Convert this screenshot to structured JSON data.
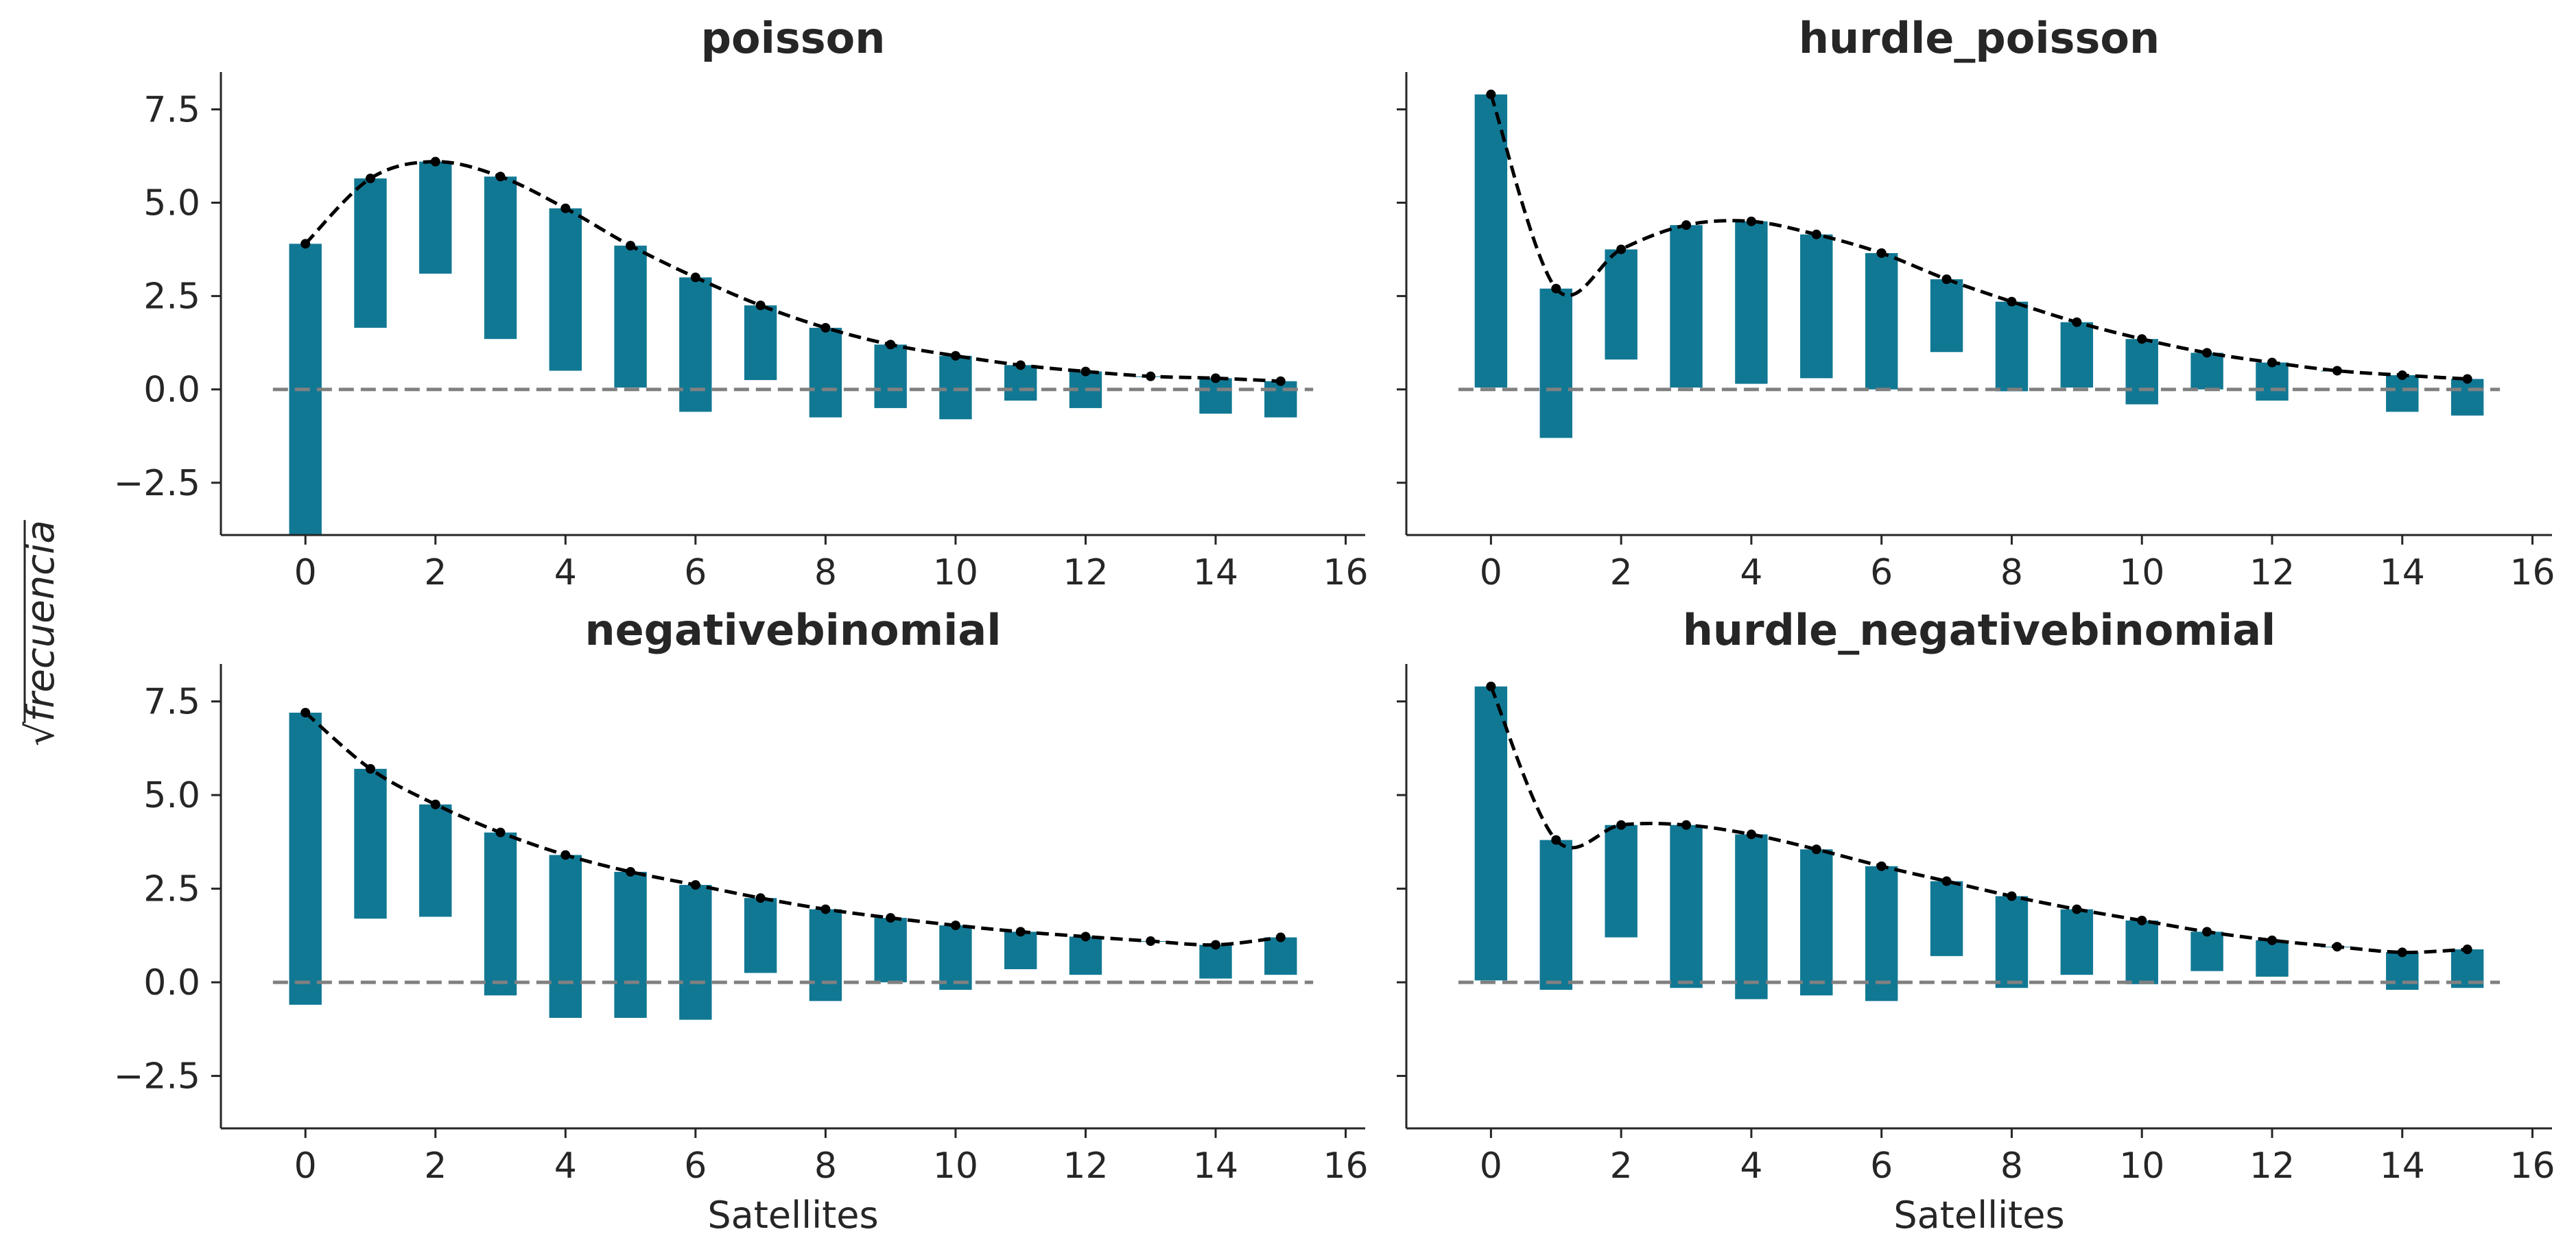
{
  "colors": {
    "bar": "#117894",
    "model_line": "#000000",
    "zero_line": "#808080",
    "axis": "#262626"
  },
  "figure": {
    "ylabel": "frecuencia",
    "ylabel_prefix": "√"
  },
  "chart_data": [
    {
      "type": "bar",
      "title": "poisson",
      "xlabel": "",
      "xlim": [
        -1.3,
        16.3
      ],
      "ylim": [
        -3.9,
        8.5
      ],
      "xticks": [
        0,
        2,
        4,
        6,
        8,
        10,
        12,
        14,
        16
      ],
      "yticks": [
        -2.5,
        0.0,
        2.5,
        5.0,
        7.5
      ],
      "x": [
        0,
        1,
        2,
        3,
        4,
        5,
        6,
        7,
        8,
        9,
        10,
        11,
        12,
        13,
        14,
        15
      ],
      "expected_sqrt": [
        3.9,
        5.65,
        6.1,
        5.7,
        4.85,
        3.85,
        3.0,
        2.25,
        1.65,
        1.2,
        0.9,
        0.65,
        0.48,
        0.35,
        0.3,
        0.22
      ],
      "bar_bottoms": [
        -3.9,
        1.65,
        3.1,
        1.35,
        0.5,
        0.05,
        -0.6,
        0.25,
        -0.75,
        -0.5,
        -0.8,
        -0.3,
        -0.5,
        0.35,
        -0.65,
        -0.75
      ],
      "grid": false
    },
    {
      "type": "bar",
      "title": "hurdle_poisson",
      "xlabel": "",
      "xlim": [
        -1.3,
        16.3
      ],
      "ylim": [
        -3.9,
        8.5
      ],
      "xticks": [
        0,
        2,
        4,
        6,
        8,
        10,
        12,
        14,
        16
      ],
      "yticks": [
        -2.5,
        0.0,
        2.5,
        5.0,
        7.5
      ],
      "x": [
        0,
        1,
        2,
        3,
        4,
        5,
        6,
        7,
        8,
        9,
        10,
        11,
        12,
        13,
        14,
        15
      ],
      "expected_sqrt": [
        7.9,
        2.7,
        3.75,
        4.4,
        4.5,
        4.15,
        3.65,
        2.95,
        2.35,
        1.8,
        1.35,
        0.98,
        0.72,
        0.5,
        0.38,
        0.28
      ],
      "bar_bottoms": [
        0.05,
        -1.3,
        0.8,
        0.05,
        0.15,
        0.3,
        0.0,
        1.0,
        -0.05,
        0.05,
        -0.4,
        0.0,
        -0.3,
        0.5,
        -0.6,
        -0.7
      ],
      "grid": false
    },
    {
      "type": "bar",
      "title": "negativebinomial",
      "xlabel": "Satellites",
      "xlim": [
        -1.3,
        16.3
      ],
      "ylim": [
        -3.9,
        8.5
      ],
      "xticks": [
        0,
        2,
        4,
        6,
        8,
        10,
        12,
        14,
        16
      ],
      "yticks": [
        -2.5,
        0.0,
        2.5,
        5.0,
        7.5
      ],
      "x": [
        0,
        1,
        2,
        3,
        4,
        5,
        6,
        7,
        8,
        9,
        10,
        11,
        12,
        13,
        14,
        15
      ],
      "expected_sqrt": [
        7.2,
        5.7,
        4.75,
        4.0,
        3.4,
        2.95,
        2.6,
        2.25,
        1.95,
        1.72,
        1.52,
        1.35,
        1.22,
        1.1,
        1.0,
        1.2
      ],
      "bar_bottoms": [
        -0.6,
        1.7,
        1.75,
        -0.35,
        -0.95,
        -0.95,
        -1.0,
        0.25,
        -0.5,
        0.0,
        -0.2,
        0.35,
        0.2,
        1.1,
        0.1,
        0.2
      ],
      "grid": false
    },
    {
      "type": "bar",
      "title": "hurdle_negativebinomial",
      "xlabel": "Satellites",
      "xlim": [
        -1.3,
        16.3
      ],
      "ylim": [
        -3.9,
        8.5
      ],
      "xticks": [
        0,
        2,
        4,
        6,
        8,
        10,
        12,
        14,
        16
      ],
      "yticks": [
        -2.5,
        0.0,
        2.5,
        5.0,
        7.5
      ],
      "x": [
        0,
        1,
        2,
        3,
        4,
        5,
        6,
        7,
        8,
        9,
        10,
        11,
        12,
        13,
        14,
        15
      ],
      "expected_sqrt": [
        7.9,
        3.8,
        4.2,
        4.2,
        3.95,
        3.55,
        3.1,
        2.7,
        2.3,
        1.95,
        1.65,
        1.35,
        1.12,
        0.95,
        0.8,
        0.88
      ],
      "bar_bottoms": [
        0.05,
        -0.2,
        1.2,
        -0.15,
        -0.45,
        -0.35,
        -0.5,
        0.7,
        -0.15,
        0.2,
        -0.05,
        0.3,
        0.15,
        0.95,
        -0.2,
        -0.15
      ],
      "grid": false
    }
  ]
}
